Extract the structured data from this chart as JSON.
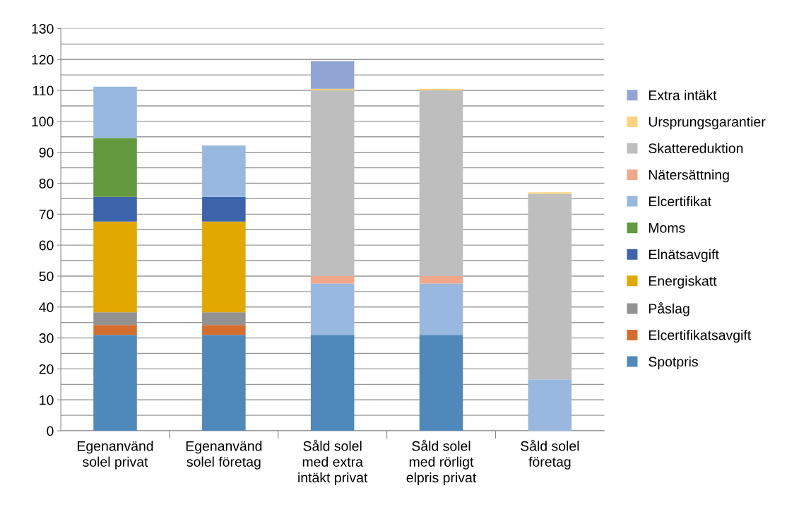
{
  "chart_data": {
    "type": "bar",
    "stacked": true,
    "categories": [
      "Egenanvänd\nsolel privat",
      "Egenanvänd\nsolel företag",
      "Såld solel\nmed extra\nintäkt privat",
      "Såld solel\nmed rörligt\nelpris privat",
      "Såld solel\nföretag"
    ],
    "series": [
      {
        "name": "Spotpris",
        "color": "#4f88bb",
        "values": [
          31,
          31,
          31,
          31,
          null
        ]
      },
      {
        "name": "Elcertifikatsavgift",
        "color": "#d46e2c",
        "values": [
          3.2,
          3.2,
          null,
          null,
          null
        ]
      },
      {
        "name": "Påslag",
        "color": "#929292",
        "values": [
          4.1,
          4.1,
          null,
          null,
          null
        ]
      },
      {
        "name": "Energiskatt",
        "color": "#e0a800",
        "values": [
          29.3,
          29.3,
          null,
          null,
          null
        ]
      },
      {
        "name": "Elnätsavgift",
        "color": "#3c64ab",
        "values": [
          8,
          8,
          null,
          null,
          null
        ]
      },
      {
        "name": "Moms",
        "color": "#62993f",
        "values": [
          19,
          null,
          null,
          null,
          null
        ]
      },
      {
        "name": "Elcertifikat",
        "color": "#98b8df",
        "values": [
          16.6,
          16.6,
          16.6,
          16.6,
          16.6
        ]
      },
      {
        "name": "Nätersättning",
        "color": "#f0a888",
        "values": [
          null,
          null,
          2.4,
          2.4,
          null
        ]
      },
      {
        "name": "Skattereduktion",
        "color": "#bebebe",
        "values": [
          null,
          null,
          60,
          60,
          60
        ]
      },
      {
        "name": "Ursprungsgarantier",
        "color": "#fcd27f",
        "values": [
          null,
          null,
          0.5,
          0.5,
          0.5
        ]
      },
      {
        "name": "Extra intäkt",
        "color": "#91a5d5",
        "values": [
          null,
          null,
          9,
          null,
          null
        ]
      }
    ],
    "ylim": [
      0,
      130
    ],
    "yticks": [
      0,
      {
        "value": 5,
        "label": null
      },
      10,
      {
        "value": 15,
        "label": null
      },
      20,
      {
        "value": 25,
        "label": null
      },
      30,
      {
        "value": 35,
        "label": null
      },
      40,
      {
        "value": 45,
        "label": null
      },
      50,
      {
        "value": 55,
        "label": null
      },
      60,
      {
        "value": 65,
        "label": null
      },
      70,
      {
        "value": 75,
        "label": null
      },
      80,
      {
        "value": 85,
        "label": null
      },
      90,
      {
        "value": 95,
        "label": null
      },
      100,
      {
        "value": 105,
        "label": null
      },
      110,
      {
        "value": 115,
        "label": null
      },
      120,
      {
        "value": 125,
        "label": null
      },
      130
    ],
    "grid": "y",
    "legend": "right"
  }
}
